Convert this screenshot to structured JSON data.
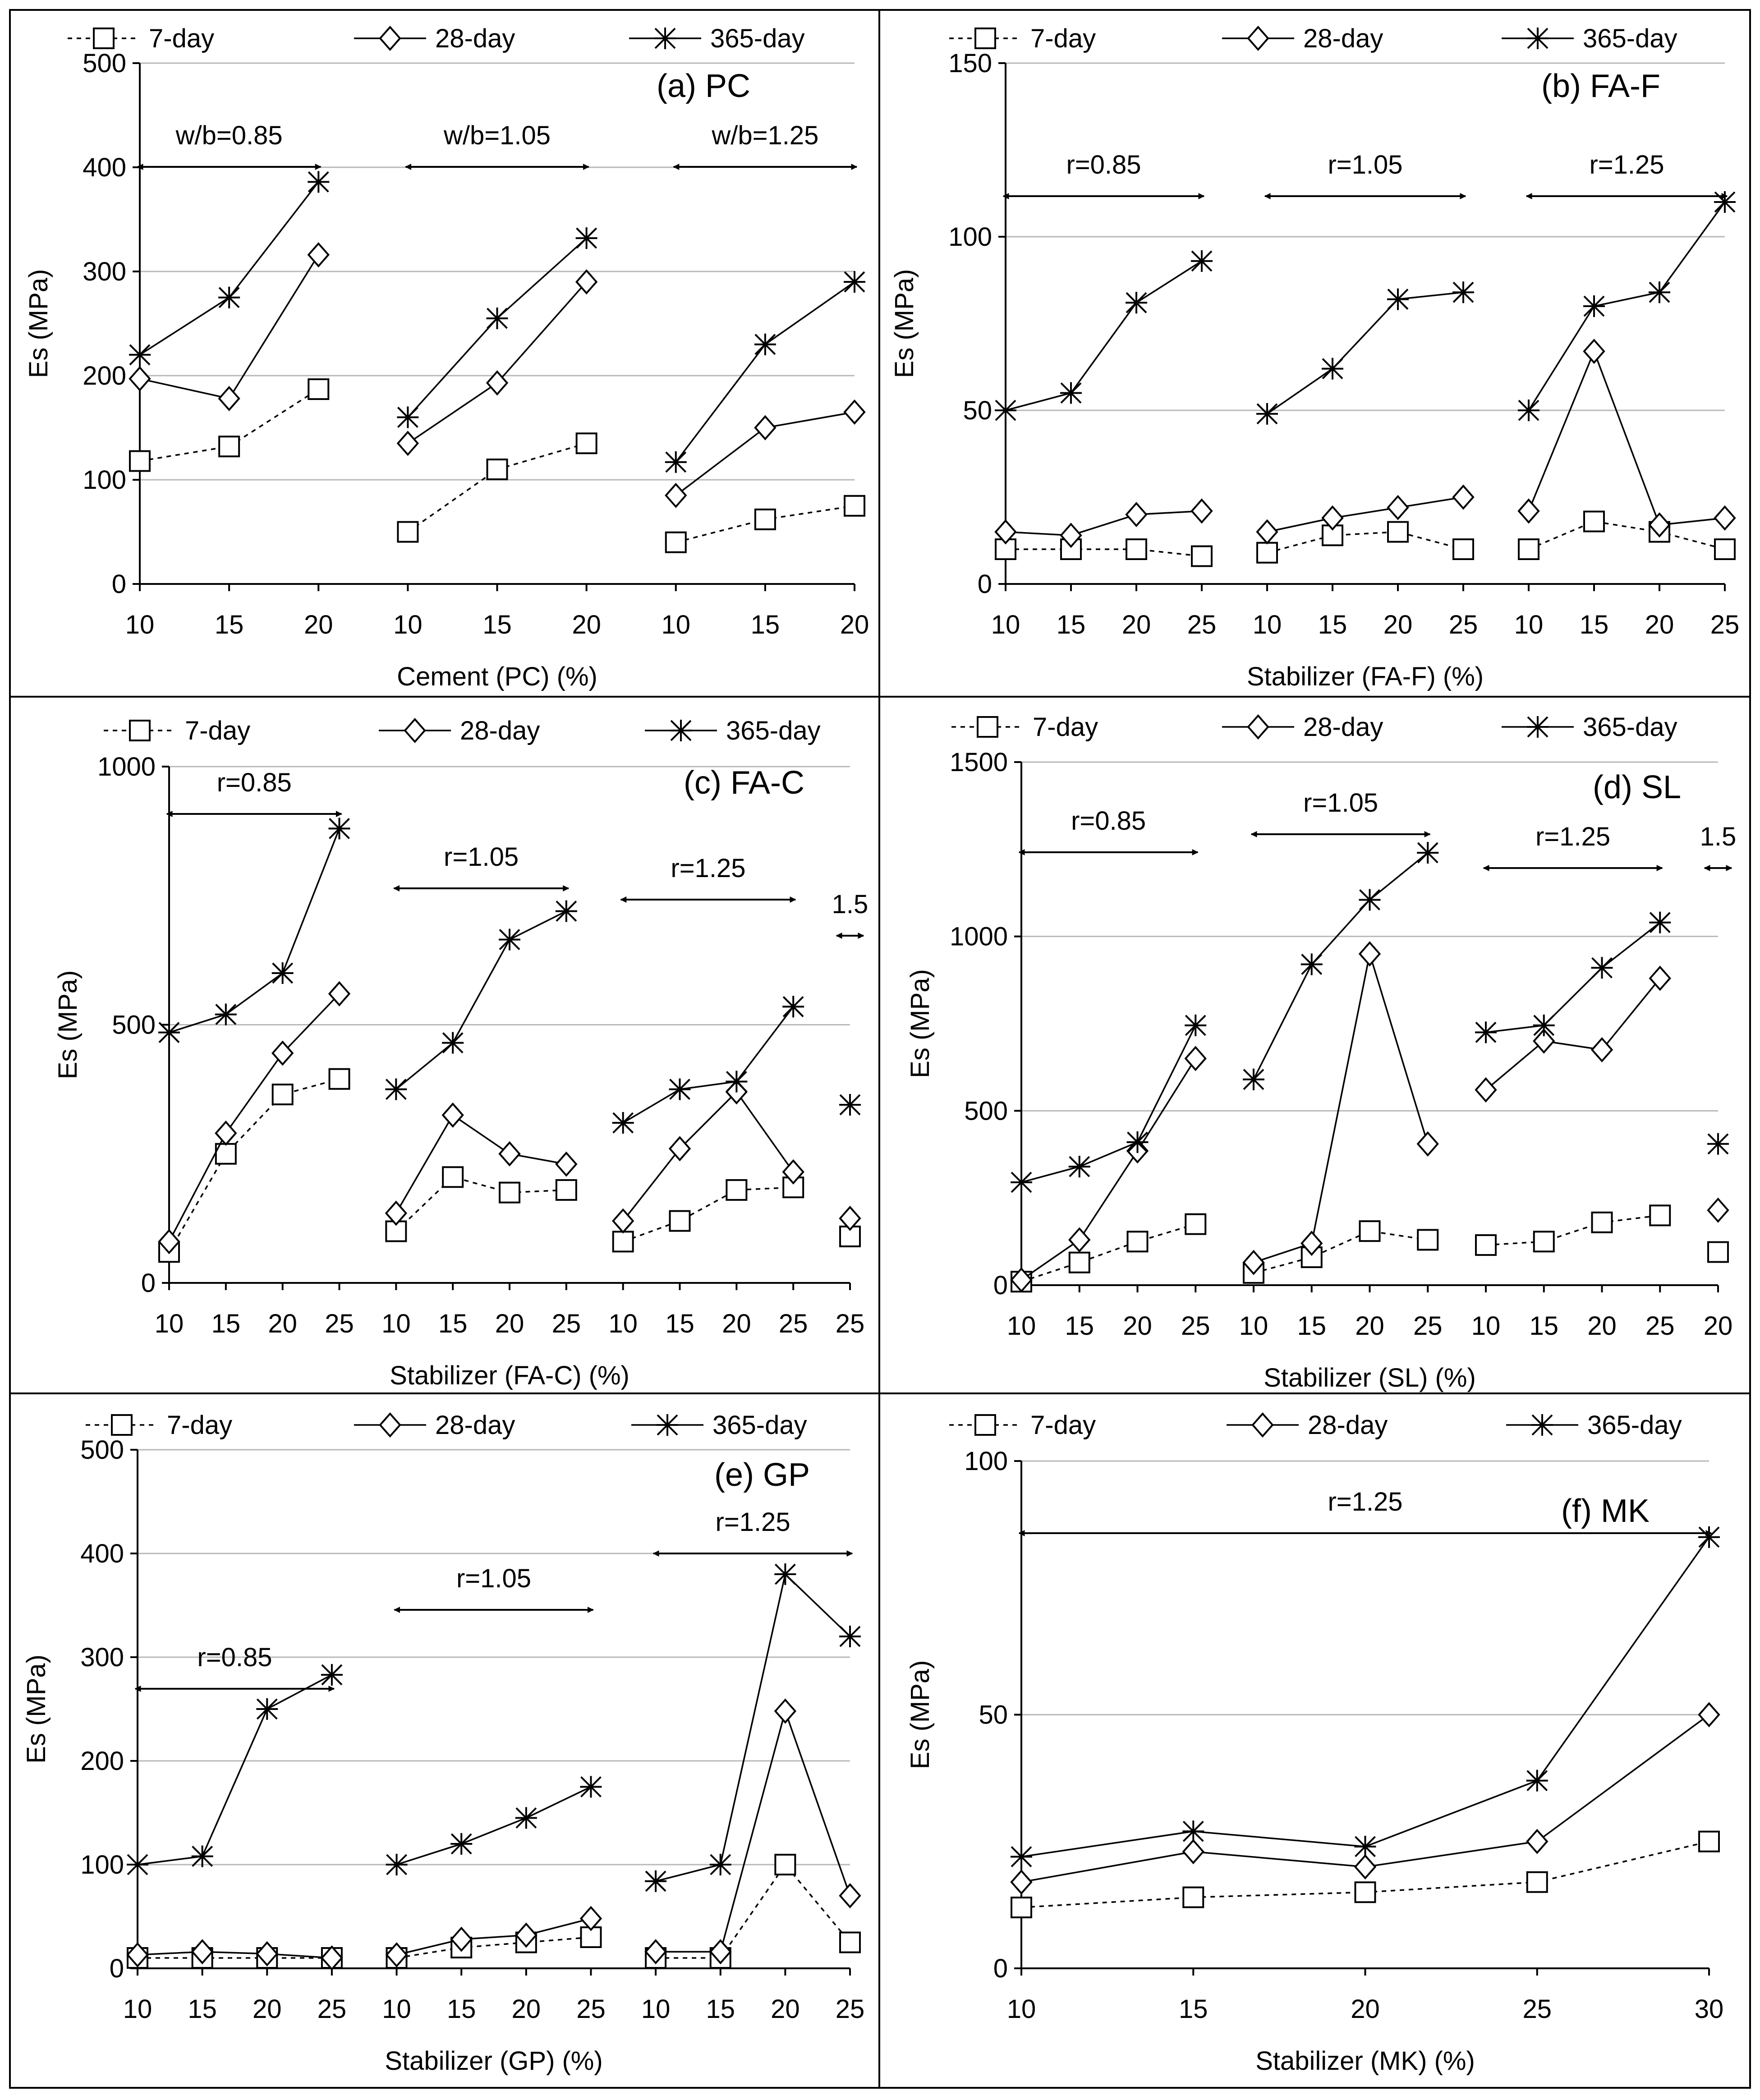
{
  "legend": {
    "s7": "7-day",
    "s28": "28-day",
    "s365": "365-day"
  },
  "ylabel": "Es (MPa)",
  "chart_data": [
    {
      "id": "a",
      "type": "line",
      "panel_label": "(a) PC",
      "xlabel": "Cement (PC) (%)",
      "ylim": [
        0,
        500
      ],
      "yticks": [
        "0",
        "100",
        "200",
        "300",
        "400",
        "500"
      ],
      "categories": [
        "10",
        "15",
        "20",
        "10",
        "15",
        "20",
        "10",
        "15",
        "20"
      ],
      "groups": [
        {
          "label": "w/b=0.85",
          "range": [
            0,
            2
          ]
        },
        {
          "label": "w/b=1.05",
          "range": [
            3,
            5
          ]
        },
        {
          "label": "w/b=1.25",
          "range": [
            6,
            8
          ]
        }
      ],
      "series": [
        {
          "name": "7-day",
          "values": [
            118,
            132,
            187,
            50,
            110,
            135,
            40,
            62,
            75
          ]
        },
        {
          "name": "28-day",
          "values": [
            197,
            178,
            316,
            135,
            193,
            290,
            85,
            150,
            165
          ]
        },
        {
          "name": "365-day",
          "values": [
            220,
            275,
            386,
            160,
            255,
            332,
            117,
            230,
            290
          ]
        }
      ]
    },
    {
      "id": "b",
      "type": "line",
      "panel_label": "(b) FA-F",
      "xlabel": "Stabilizer (FA-F) (%)",
      "ylim": [
        0,
        150
      ],
      "yticks": [
        "0",
        "50",
        "100",
        "150"
      ],
      "categories": [
        "10",
        "15",
        "20",
        "25",
        "10",
        "15",
        "20",
        "25",
        "10",
        "15",
        "20",
        "25"
      ],
      "groups": [
        {
          "label": "r=0.85",
          "range": [
            0,
            3
          ]
        },
        {
          "label": "r=1.05",
          "range": [
            4,
            7
          ]
        },
        {
          "label": "r=1.25",
          "range": [
            8,
            11
          ]
        }
      ],
      "series": [
        {
          "name": "7-day",
          "values": [
            10,
            10,
            10,
            8,
            9,
            14,
            15,
            10,
            10,
            18,
            15,
            10
          ]
        },
        {
          "name": "28-day",
          "values": [
            15,
            14,
            20,
            21,
            15,
            19,
            22,
            25,
            21,
            67,
            17,
            19
          ]
        },
        {
          "name": "365-day",
          "values": [
            50,
            55,
            81,
            93,
            49,
            62,
            82,
            84,
            50,
            80,
            84,
            110
          ]
        }
      ]
    },
    {
      "id": "c",
      "type": "line",
      "panel_label": "(c) FA-C",
      "xlabel": "Stabilizer (FA-C) (%)",
      "ylim": [
        0,
        1000
      ],
      "yticks": [
        "0",
        "500",
        "1000"
      ],
      "categories": [
        "10",
        "15",
        "20",
        "25",
        "10",
        "15",
        "20",
        "25",
        "10",
        "15",
        "20",
        "25",
        "25"
      ],
      "groups": [
        {
          "label": "r=0.85",
          "range": [
            0,
            3
          ]
        },
        {
          "label": "r=1.05",
          "range": [
            4,
            7
          ]
        },
        {
          "label": "r=1.25",
          "range": [
            8,
            11
          ]
        },
        {
          "label": "1.5",
          "range": [
            12,
            12
          ]
        }
      ],
      "series": [
        {
          "name": "7-day",
          "values": [
            60,
            250,
            365,
            395,
            100,
            205,
            175,
            180,
            80,
            120,
            180,
            185,
            90
          ]
        },
        {
          "name": "28-day",
          "values": [
            80,
            290,
            445,
            560,
            135,
            325,
            250,
            230,
            120,
            260,
            370,
            215,
            125
          ]
        },
        {
          "name": "365-day",
          "values": [
            485,
            520,
            600,
            880,
            375,
            465,
            665,
            720,
            310,
            375,
            390,
            535,
            345
          ]
        }
      ]
    },
    {
      "id": "d",
      "type": "line",
      "panel_label": "(d) SL",
      "xlabel": "Stabilizer (SL) (%)",
      "ylim": [
        0,
        1500
      ],
      "yticks": [
        "0",
        "500",
        "1000",
        "1500"
      ],
      "categories": [
        "10",
        "15",
        "20",
        "25",
        "10",
        "15",
        "20",
        "25",
        "10",
        "15",
        "20",
        "25",
        "20"
      ],
      "groups": [
        {
          "label": "r=0.85",
          "range": [
            0,
            3
          ]
        },
        {
          "label": "r=1.05",
          "range": [
            4,
            7
          ]
        },
        {
          "label": "r=1.25",
          "range": [
            8,
            11
          ]
        },
        {
          "label": "1.5",
          "range": [
            12,
            12
          ]
        }
      ],
      "series": [
        {
          "name": "7-day",
          "values": [
            10,
            65,
            125,
            175,
            35,
            80,
            155,
            130,
            115,
            125,
            180,
            200,
            95
          ]
        },
        {
          "name": "28-day",
          "values": [
            15,
            130,
            385,
            650,
            65,
            120,
            950,
            405,
            560,
            700,
            675,
            880,
            215
          ]
        },
        {
          "name": "365-day",
          "values": [
            295,
            340,
            410,
            745,
            590,
            920,
            1105,
            1240,
            725,
            745,
            910,
            1040,
            405
          ]
        }
      ]
    },
    {
      "id": "e",
      "type": "line",
      "panel_label": "(e) GP",
      "xlabel": "Stabilizer (GP) (%)",
      "ylim": [
        0,
        500
      ],
      "yticks": [
        "0",
        "100",
        "200",
        "300",
        "400",
        "500"
      ],
      "categories": [
        "10",
        "15",
        "20",
        "25",
        "10",
        "15",
        "20",
        "25",
        "10",
        "15",
        "20",
        "25"
      ],
      "groups": [
        {
          "label": "r=0.85",
          "range": [
            0,
            3
          ]
        },
        {
          "label": "r=1.05",
          "range": [
            4,
            7
          ]
        },
        {
          "label": "r=1.25",
          "range": [
            8,
            11
          ]
        }
      ],
      "series": [
        {
          "name": "7-day",
          "values": [
            10,
            10,
            10,
            10,
            10,
            20,
            25,
            30,
            10,
            10,
            100,
            25
          ]
        },
        {
          "name": "28-day",
          "values": [
            13,
            16,
            14,
            10,
            13,
            28,
            32,
            48,
            16,
            16,
            248,
            70
          ]
        },
        {
          "name": "365-day",
          "values": [
            100,
            108,
            250,
            283,
            100,
            120,
            145,
            175,
            84,
            100,
            380,
            320
          ]
        }
      ]
    },
    {
      "id": "f",
      "type": "line",
      "panel_label": "(f) MK",
      "xlabel": "Stabilizer (MK) (%)",
      "ylim": [
        0,
        100
      ],
      "yticks": [
        "0",
        "50",
        "100"
      ],
      "categories": [
        "10",
        "15",
        "20",
        "25",
        "30"
      ],
      "groups": [
        {
          "label": "r=1.25",
          "range": [
            0,
            4
          ]
        }
      ],
      "series": [
        {
          "name": "7-day",
          "values": [
            12,
            14,
            15,
            17,
            25
          ]
        },
        {
          "name": "28-day",
          "values": [
            17,
            23,
            20,
            25,
            50
          ]
        },
        {
          "name": "365-day",
          "values": [
            22,
            27,
            24,
            37,
            85
          ]
        }
      ]
    }
  ]
}
